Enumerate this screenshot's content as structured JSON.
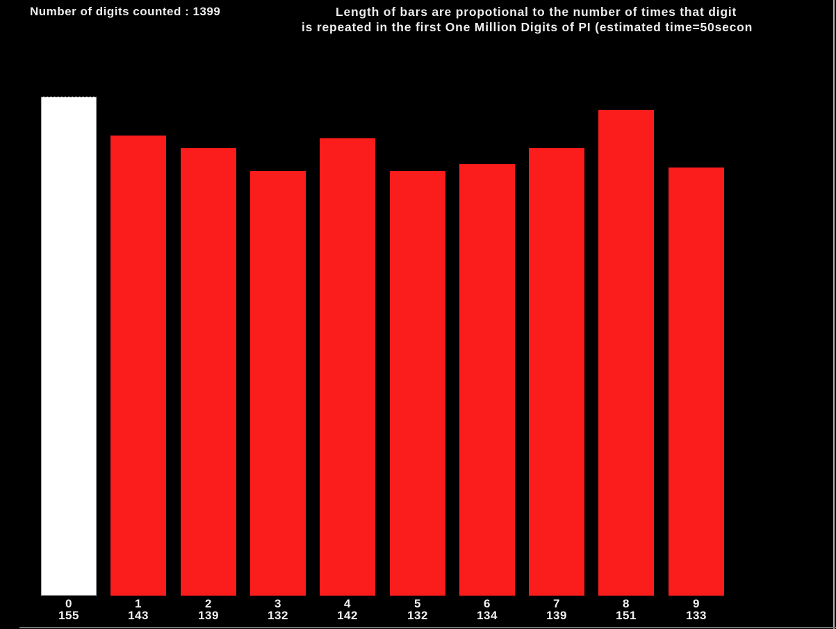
{
  "window": {
    "background": "#000000",
    "right_border_color": "#b2b2b2",
    "bottom_border_color": "#747474"
  },
  "header": {
    "counter_text": "Number of digits counted : 1399",
    "title_line1": "Length of bars are propotional to the number of times that digit",
    "title_line2": "is repeated in the first One Million Digits of PI (estimated time=50secon"
  },
  "chart_data": {
    "type": "bar",
    "categories": [
      "0",
      "1",
      "2",
      "3",
      "4",
      "5",
      "6",
      "7",
      "8",
      "9"
    ],
    "values": [
      155,
      143,
      139,
      132,
      142,
      132,
      134,
      139,
      151,
      133
    ],
    "counter_label": "Number of digits counted : 1399",
    "counter_value": 1399,
    "title": "Length of bars are propotional to the number of times that digit is repeated in the first One Million Digits of PI (estimated time=50secon",
    "xlabel": "",
    "ylabel": "",
    "ylim": [
      0,
      160
    ],
    "grid": false,
    "legend": false,
    "orientation": "vertical",
    "background_color": "#000000",
    "bar_color_zero": "#ffffff",
    "bar_color_default": "#fb1c1c",
    "label_color": "#f0f0f0"
  }
}
